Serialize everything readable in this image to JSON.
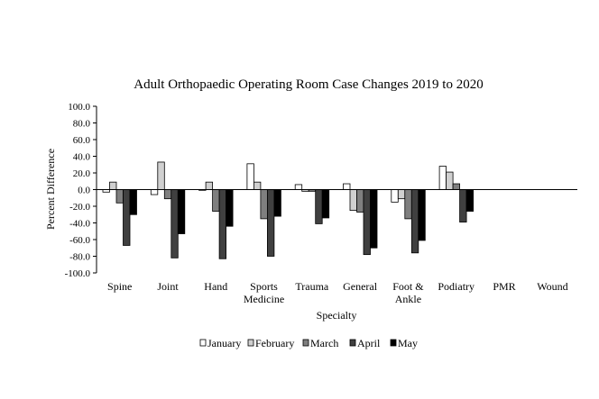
{
  "chart_data": {
    "type": "bar",
    "title": "Adult Orthopaedic Operating Room Case Changes 2019 to 2020",
    "xlabel": "Specialty",
    "ylabel": "Percent Difference",
    "ylim": [
      -100,
      100
    ],
    "yticks": [
      "100.0",
      "80.0",
      "60.0",
      "40.0",
      "20.0",
      "0.0",
      "-20.0",
      "-40.0",
      "-60.0",
      "-80.0",
      "-100.0"
    ],
    "ytick_values": [
      100,
      80,
      60,
      40,
      20,
      0,
      -20,
      -40,
      -60,
      -80,
      -100
    ],
    "categories": [
      [
        "Spine"
      ],
      [
        "Joint"
      ],
      [
        "Hand"
      ],
      [
        "Sports",
        "Medicine"
      ],
      [
        "Trauma"
      ],
      [
        "General"
      ],
      [
        "Foot &",
        "Ankle"
      ],
      [
        "Podiatry"
      ],
      [
        "PMR"
      ],
      [
        "Wound"
      ]
    ],
    "series": [
      {
        "name": "January",
        "color": "#ffffff",
        "values": [
          -3,
          -6,
          0,
          31,
          6,
          7,
          -15,
          28,
          null,
          null
        ]
      },
      {
        "name": "February",
        "color": "#d0d0d0",
        "values": [
          9,
          33,
          9,
          9,
          -2,
          -25,
          -11,
          21,
          null,
          null
        ]
      },
      {
        "name": "March",
        "color": "#7f7f7f",
        "values": [
          -16,
          -11,
          -26,
          -35,
          -2,
          -27,
          -35,
          7,
          null,
          null
        ]
      },
      {
        "name": "April",
        "color": "#404040",
        "values": [
          -67,
          -82,
          -83,
          -80,
          -41,
          -78,
          -76,
          -39,
          null,
          null
        ]
      },
      {
        "name": "May",
        "color": "#000000",
        "values": [
          -30,
          -53,
          -44,
          -32,
          -34,
          -70,
          -61,
          -26,
          null,
          null
        ]
      }
    ],
    "grid": false,
    "legend_position": "bottom"
  }
}
